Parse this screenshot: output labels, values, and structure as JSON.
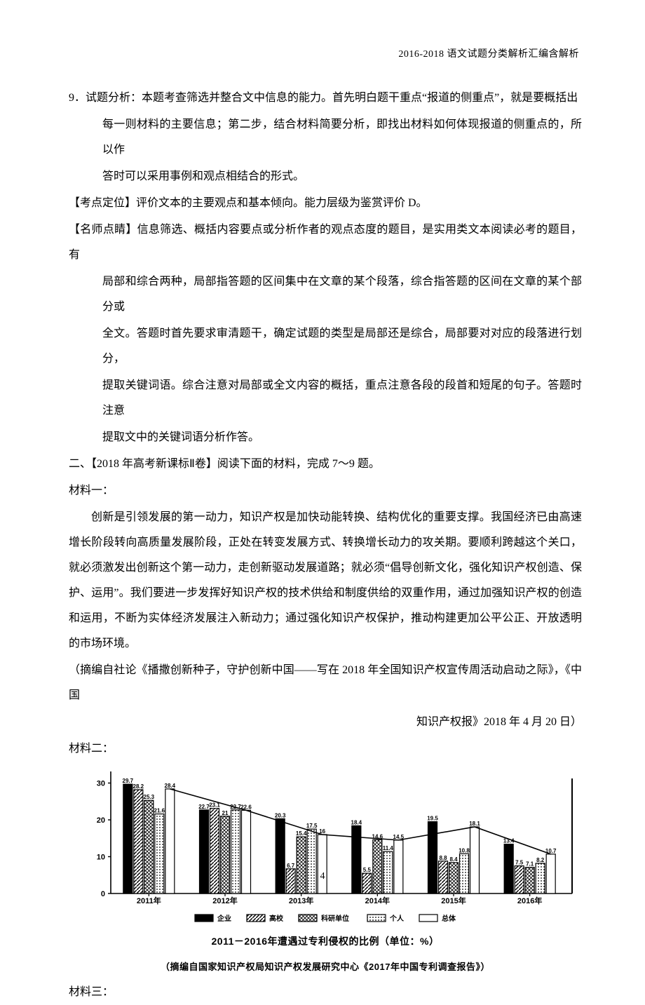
{
  "header": {
    "right": "2016-2018 语文试题分类解析汇编含解析"
  },
  "q9": {
    "line1": "9．试题分析：本题考查筛选并整合文中信息的能力。首先明白题干重点“报道的侧重点”，就是要概括出",
    "line2": "每一则材料的主要信息；第二步，结合材料简要分析，即找出材料如何体现报道的侧重点的，所以作",
    "line3": "答时可以采用事例和观点相结合的形式。"
  },
  "kaodian": "【考点定位】评价文本的主要观点和基本倾向。能力层级为鉴赏评价 D。",
  "mingshi": {
    "line1": "【名师点睛】信息筛选、概括内容要点或分析作者的观点态度的题目，是实用类文本阅读必考的题目，有",
    "line2": "局部和综合两种，局部指答题的区间集中在文章的某个段落，综合指答题的区间在文章的某个部分或",
    "line3": "全文。答题时首先要求审清题干，确定试题的类型是局部还是综合，局部要对对应的段落进行划分，",
    "line4": "提取关键词语。综合注意对局部或全文内容的概括，重点注意各段的段首和短尾的句子。答题时注意",
    "line5": "提取文中的关键词语分析作答。"
  },
  "section2_title": "二、【2018 年高考新课标Ⅱ卷】阅读下面的材料，完成 7～9 题。",
  "m1_label": "材料一：",
  "m1_body": "创新是引领发展的第一动力，知识产权是加快动能转换、结构优化的重要支撑。我国经济已由高速增长阶段转向高质量发展阶段，正处在转变发展方式、转换增长动力的攻关期。要顺利跨越这个关口，就必须激发出创新这个第一动力，走创新驱动发展道路；就必须“倡导创新文化，强化知识产权创造、保护、运用”。我们要进一步发挥好知识产权的技术供给和制度供给的双重作用，通过加强知识产权的创造和运用，不断为实体经济发展注入新动力；通过强化知识产权保护，推动构建更加公平公正、开放透明的市场环境。",
  "m1_src1": "（摘编自社论《播撒创新种子，守护创新中国——写在 2018 年全国知识产权宣传周活动启动之际》，《中国",
  "m1_src2": "知识产权报》2018 年 4 月 20 日）",
  "m2_label": "材料二：",
  "chart": {
    "type": "bar",
    "y_ticks": [
      0,
      10,
      20,
      30
    ],
    "x_labels": [
      "2011年",
      "2012年",
      "2013年",
      "2014年",
      "2015年",
      "2016年"
    ],
    "series_labels": [
      "企业",
      "高校",
      "科研单位",
      "个人",
      "总体"
    ],
    "patterns": [
      "solid",
      "diag",
      "cross",
      "dots",
      "hollow"
    ],
    "data": {
      "2011": {
        "企业": 29.7,
        "高校": 28.2,
        "科研单位": 25.3,
        "个人": 21.6,
        "总体": 28.4
      },
      "2012": {
        "企业": 22.7,
        "高校": 23.1,
        "科研单位": 21.0,
        "个人": 22.7,
        "总体": 22.6
      },
      "2013": {
        "企业": 20.3,
        "高校": 6.7,
        "科研单位": 15.4,
        "个人": 17.5,
        "总体": 16.0
      },
      "2014": {
        "企业": 18.4,
        "高校": 5.5,
        "科研单位": 14.6,
        "个人": 11.4,
        "总体": 14.5
      },
      "2015": {
        "企业": 19.5,
        "高校": 8.8,
        "科研单位": 8.4,
        "个人": 10.8,
        "总体": 18.1
      },
      "2016": {
        "企业": 13.4,
        "高校": 7.5,
        "科研单位": 7.1,
        "个人": 8.2,
        "总体": 10.7
      }
    },
    "trend_line_series": "总体",
    "colors": {
      "axis": "#000000",
      "bar_fill": "#000000",
      "bar_outline": "#000000",
      "background": "#ffffff"
    },
    "caption": "2011－2016年遭遇过专利侵权的比例（单位：%）",
    "subcaption": "（摘编自国家知识产权局知识产权发展研究中心《2017年中国专利调查报告》）"
  },
  "m3_label": "材料三：",
  "page_number": "4"
}
